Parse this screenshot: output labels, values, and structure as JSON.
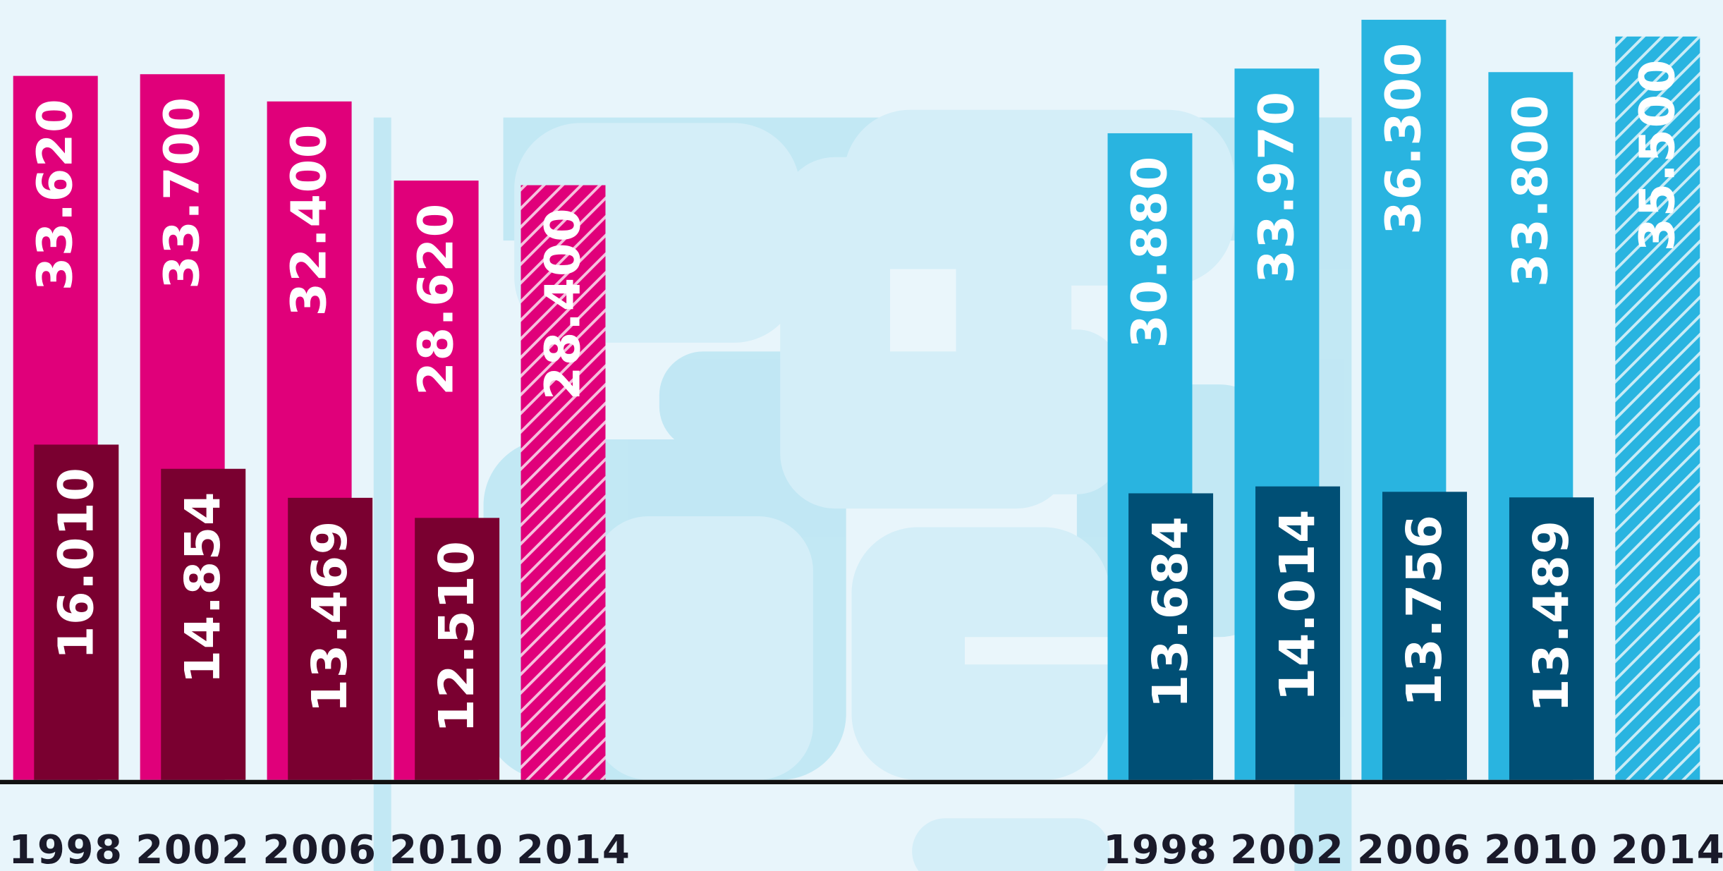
{
  "chart_data": [
    {
      "type": "bar",
      "categories": [
        "1998",
        "2002",
        "2006",
        "2010",
        "2014"
      ],
      "series": [
        {
          "color": "#e0007a",
          "values": [
            33620,
            33700,
            32400,
            28620,
            28400
          ],
          "value_labels": [
            "33.620",
            "33.700",
            "32.400",
            "28.620",
            "28.400"
          ],
          "hatched": [
            false,
            false,
            false,
            false,
            true
          ]
        },
        {
          "color": "#7a0030",
          "values": [
            16010,
            14854,
            13469,
            12510,
            null
          ],
          "value_labels": [
            "16.010",
            "14.854",
            "13.469",
            "12.510",
            null
          ],
          "hatched": [
            false,
            false,
            false,
            false,
            false
          ]
        }
      ]
    },
    {
      "type": "bar",
      "categories": [
        "1998",
        "2002",
        "2006",
        "2010",
        "2014"
      ],
      "series": [
        {
          "color": "#29b4e0",
          "values": [
            30880,
            33970,
            36300,
            33800,
            35500
          ],
          "value_labels": [
            "30.880",
            "33.970",
            "36.300",
            "33.800",
            "35.500"
          ],
          "hatched": [
            false,
            false,
            false,
            false,
            true
          ]
        },
        {
          "color": "#004f75",
          "values": [
            13684,
            14014,
            13756,
            13489,
            null
          ],
          "value_labels": [
            "13.684",
            "14.014",
            "13.756",
            "13.489",
            null
          ],
          "hatched": [
            false,
            false,
            false,
            false,
            false
          ]
        }
      ]
    }
  ]
}
